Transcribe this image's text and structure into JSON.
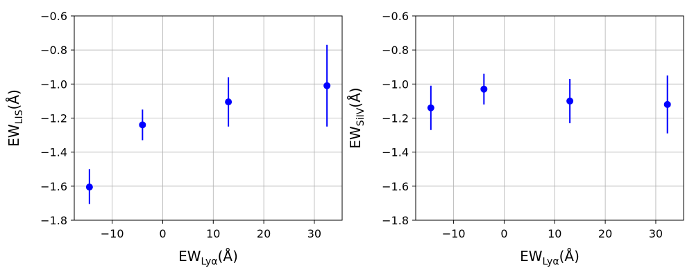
{
  "chart_data": [
    {
      "type": "scatter",
      "title": "",
      "xlabel": {
        "base": "EW",
        "sub": "Lyα",
        "suffix": "(Å)"
      },
      "ylabel": {
        "base": "EW",
        "sub": "LIS",
        "suffix": "(Å)"
      },
      "xlim": [
        -17.5,
        35.5
      ],
      "ylim": [
        -1.8,
        -0.6
      ],
      "xticks": [
        -10,
        0,
        10,
        20,
        30
      ],
      "xtick_labels": [
        "−10",
        "0",
        "10",
        "20",
        "30"
      ],
      "yticks": [
        -1.8,
        -1.6,
        -1.4,
        -1.2,
        -1.0,
        -0.8,
        -0.6
      ],
      "ytick_labels": [
        "−1.8",
        "−1.6",
        "−1.4",
        "−1.2",
        "−1.0",
        "−0.8",
        "−0.6"
      ],
      "grid": true,
      "color": "#0000ff",
      "points": [
        {
          "x": -14.5,
          "y": -1.605,
          "err_low": 0.1,
          "err_high": 0.105
        },
        {
          "x": -4.0,
          "y": -1.24,
          "err_low": 0.09,
          "err_high": 0.09
        },
        {
          "x": 13.0,
          "y": -1.105,
          "err_low": 0.145,
          "err_high": 0.145
        },
        {
          "x": 32.5,
          "y": -1.01,
          "err_low": 0.24,
          "err_high": 0.24
        }
      ]
    },
    {
      "type": "scatter",
      "title": "",
      "xlabel": {
        "base": "EW",
        "sub": "Lyα",
        "suffix": "(Å)"
      },
      "ylabel": {
        "base": "EW",
        "sub": "SiIV",
        "suffix": "(Å)"
      },
      "xlim": [
        -17.5,
        35.5
      ],
      "ylim": [
        -1.8,
        -0.6
      ],
      "xticks": [
        -10,
        0,
        10,
        20,
        30
      ],
      "xtick_labels": [
        "−10",
        "0",
        "10",
        "20",
        "30"
      ],
      "yticks": [
        -1.8,
        -1.6,
        -1.4,
        -1.2,
        -1.0,
        -0.8,
        -0.6
      ],
      "ytick_labels": [
        "−1.8",
        "−1.6",
        "−1.4",
        "−1.2",
        "−1.0",
        "−0.8",
        "−0.6"
      ],
      "grid": true,
      "color": "#0000ff",
      "points": [
        {
          "x": -14.5,
          "y": -1.14,
          "err_low": 0.13,
          "err_high": 0.13
        },
        {
          "x": -4.0,
          "y": -1.03,
          "err_low": 0.09,
          "err_high": 0.09
        },
        {
          "x": 13.0,
          "y": -1.1,
          "err_low": 0.13,
          "err_high": 0.13
        },
        {
          "x": 32.3,
          "y": -1.12,
          "err_low": 0.17,
          "err_high": 0.17
        }
      ]
    }
  ]
}
